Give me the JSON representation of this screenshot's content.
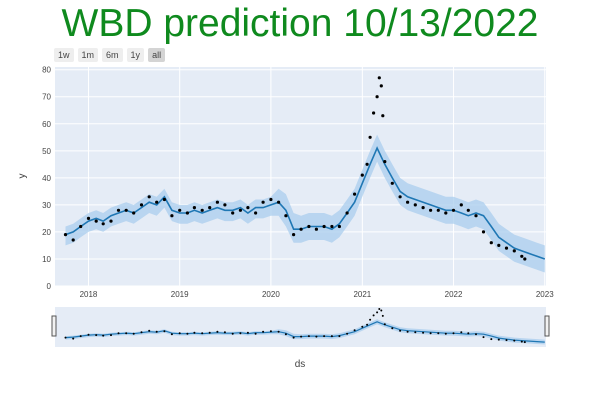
{
  "page_title": "WBD prediction 10/13/2022",
  "range_buttons": [
    "1w",
    "1m",
    "6m",
    "1y",
    "all"
  ],
  "active_range": "all",
  "colors": {
    "title": "#0f8a1e",
    "plot_bg": "#e5ecf6",
    "band": "#a9cdee",
    "forecast_line": "#1f77b4",
    "actual_points": "#000000"
  },
  "chart_data": {
    "type": "line",
    "title": "",
    "xlabel": "ds",
    "ylabel": "y",
    "ylim": [
      0,
      81
    ],
    "yticks": [
      0,
      10,
      20,
      30,
      40,
      50,
      60,
      70,
      80
    ],
    "xlim": [
      "2017-08-20",
      "2023-01-06"
    ],
    "xticks": [
      "2018-01-01",
      "2019-01-01",
      "2020-01-01",
      "2021-01-01",
      "2022-01-01",
      "2023-01-01"
    ],
    "xtick_labels": [
      "2018",
      "2019",
      "2020",
      "2021",
      "2022",
      "2023"
    ],
    "grid": true,
    "legend": "none",
    "range_slider": true,
    "series": [
      {
        "kind": "forecast",
        "dates": [
          "2017-10-01",
          "2017-11-01",
          "2017-12-01",
          "2018-01-01",
          "2018-02-01",
          "2018-03-01",
          "2018-04-01",
          "2018-05-01",
          "2018-06-01",
          "2018-07-01",
          "2018-08-01",
          "2018-09-01",
          "2018-10-01",
          "2018-11-01",
          "2018-12-01",
          "2019-01-01",
          "2019-02-01",
          "2019-03-01",
          "2019-04-01",
          "2019-05-01",
          "2019-06-01",
          "2019-07-01",
          "2019-08-01",
          "2019-09-01",
          "2019-10-01",
          "2019-11-01",
          "2019-12-01",
          "2020-01-01",
          "2020-02-01",
          "2020-03-01",
          "2020-04-01",
          "2020-05-01",
          "2020-06-01",
          "2020-07-01",
          "2020-08-01",
          "2020-09-01",
          "2020-10-01",
          "2020-11-01",
          "2020-12-01",
          "2021-01-01",
          "2021-02-01",
          "2021-03-01",
          "2021-04-01",
          "2021-05-01",
          "2021-06-01",
          "2021-07-01",
          "2021-08-01",
          "2021-09-01",
          "2021-10-01",
          "2021-11-01",
          "2021-12-01",
          "2022-01-01",
          "2022-02-01",
          "2022-03-01",
          "2022-04-01",
          "2022-05-01",
          "2022-06-01",
          "2022-07-01",
          "2022-08-01",
          "2022-09-01",
          "2022-10-01",
          "2022-11-01",
          "2022-12-01",
          "2023-01-01"
        ],
        "yhat": [
          19,
          20,
          22,
          24,
          25,
          24,
          26,
          27,
          28,
          27,
          29,
          31,
          30,
          33,
          28,
          27,
          27,
          28,
          27,
          28,
          29,
          28,
          28,
          29,
          27,
          29,
          29,
          30,
          31,
          28,
          21,
          21,
          22,
          22,
          22,
          21,
          23,
          27,
          31,
          38,
          45,
          51,
          45,
          40,
          35,
          33,
          32,
          31,
          30,
          29,
          28,
          28,
          27,
          26,
          27,
          26,
          22,
          18,
          16,
          14,
          13,
          12,
          11,
          10
        ],
        "upper": [
          22,
          23,
          25,
          27,
          28,
          27,
          29,
          30,
          31,
          30,
          32,
          34,
          33,
          36,
          31,
          30,
          30,
          31,
          30,
          31,
          32,
          31,
          31,
          32,
          30,
          32,
          32,
          33,
          36,
          34,
          27,
          26,
          27,
          27,
          27,
          26,
          28,
          32,
          36,
          43,
          50,
          56,
          50,
          45,
          40,
          38,
          37,
          36,
          35,
          34,
          33,
          33,
          32,
          31,
          32,
          31,
          27,
          23,
          21,
          19,
          18,
          17,
          16,
          15
        ],
        "lower": [
          15,
          16,
          18,
          20,
          21,
          20,
          22,
          23,
          24,
          23,
          25,
          27,
          26,
          29,
          24,
          23,
          23,
          24,
          23,
          24,
          25,
          24,
          24,
          25,
          23,
          25,
          25,
          26,
          26,
          22,
          16,
          16,
          17,
          17,
          17,
          16,
          18,
          22,
          26,
          33,
          40,
          46,
          40,
          35,
          30,
          28,
          27,
          26,
          25,
          24,
          23,
          23,
          22,
          21,
          22,
          21,
          17,
          13,
          11,
          9,
          8,
          7,
          6,
          5
        ]
      },
      {
        "kind": "actual",
        "dates": [
          "2017-10-01",
          "2017-11-01",
          "2017-12-01",
          "2018-01-01",
          "2018-02-01",
          "2018-03-01",
          "2018-04-01",
          "2018-05-01",
          "2018-06-01",
          "2018-07-01",
          "2018-08-01",
          "2018-09-01",
          "2018-10-01",
          "2018-11-01",
          "2018-12-01",
          "2019-01-01",
          "2019-02-01",
          "2019-03-01",
          "2019-04-01",
          "2019-05-01",
          "2019-06-01",
          "2019-07-01",
          "2019-08-01",
          "2019-09-01",
          "2019-10-01",
          "2019-11-01",
          "2019-12-01",
          "2020-01-01",
          "2020-02-01",
          "2020-03-01",
          "2020-04-01",
          "2020-05-01",
          "2020-06-01",
          "2020-07-01",
          "2020-08-01",
          "2020-09-01",
          "2020-10-01",
          "2020-11-01",
          "2020-12-01",
          "2021-01-01",
          "2021-01-20",
          "2021-02-01",
          "2021-02-15",
          "2021-03-01",
          "2021-03-10",
          "2021-03-18",
          "2021-03-24",
          "2021-04-01",
          "2021-05-01",
          "2021-06-01",
          "2021-07-01",
          "2021-08-01",
          "2021-09-01",
          "2021-10-01",
          "2021-11-01",
          "2021-12-01",
          "2022-01-01",
          "2022-02-01",
          "2022-03-01",
          "2022-04-01",
          "2022-05-01",
          "2022-06-01",
          "2022-07-01",
          "2022-08-01",
          "2022-09-01",
          "2022-10-01",
          "2022-10-13"
        ],
        "values": [
          19,
          17,
          22,
          25,
          24,
          23,
          24,
          28,
          28,
          27,
          30,
          33,
          31,
          32,
          26,
          28,
          27,
          29,
          28,
          29,
          31,
          30,
          27,
          28,
          29,
          27,
          31,
          32,
          31,
          26,
          19,
          21,
          22,
          21,
          22,
          22,
          22,
          27,
          34,
          41,
          45,
          55,
          64,
          70,
          77,
          74,
          63,
          46,
          38,
          33,
          31,
          30,
          29,
          28,
          28,
          27,
          28,
          30,
          28,
          26,
          20,
          16,
          15,
          14,
          13,
          11,
          10
        ]
      }
    ]
  }
}
